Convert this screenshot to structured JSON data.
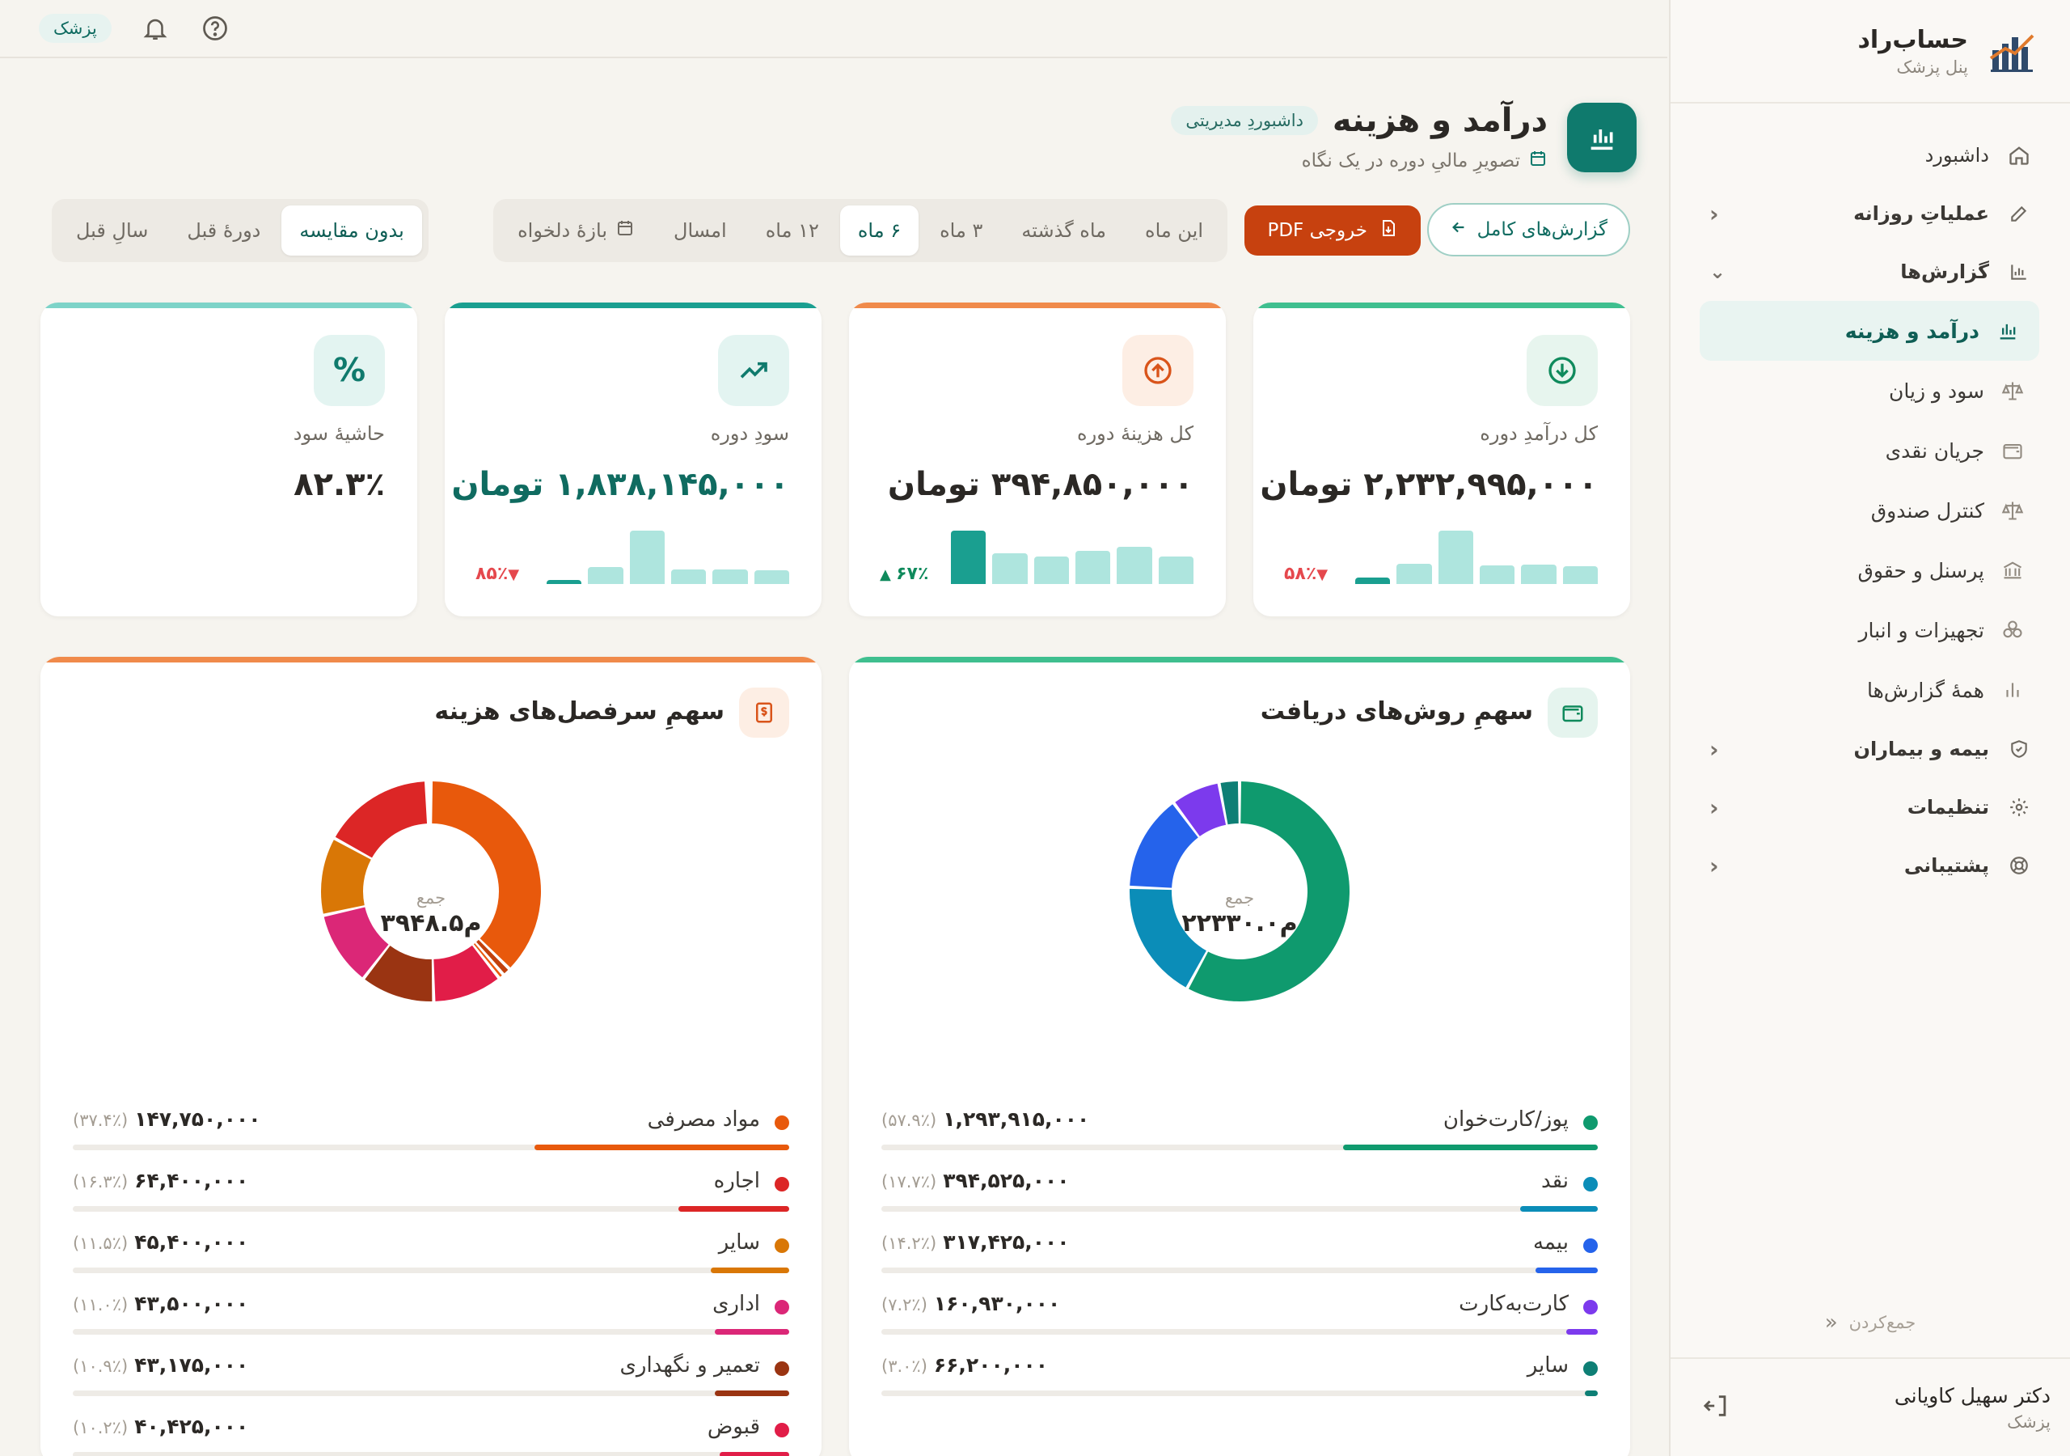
{
  "brand": {
    "name": "حساب‌راد",
    "subtitle": "پنل پزشک"
  },
  "topbar": {
    "role_pill": "پزشک"
  },
  "nav": {
    "dashboard": "داشبورد",
    "daily_ops": "عملیاتِ روزانه",
    "reports": "گزارش‌ها",
    "sub": [
      {
        "label": "درآمد و هزینه",
        "icon": "bar-chart-icon"
      },
      {
        "label": "سود و زیان",
        "icon": "scale-icon"
      },
      {
        "label": "جریان نقدی",
        "icon": "wallet-icon"
      },
      {
        "label": "کنترل صندوق",
        "icon": "scale-icon"
      },
      {
        "label": "پرسنل و حقوق",
        "icon": "bank-icon"
      },
      {
        "label": "تجهیزات و انبار",
        "icon": "boxes-icon"
      },
      {
        "label": "همهٔ گزارش‌ها",
        "icon": "bars-icon"
      }
    ],
    "insurance": "بیمه و بیماران",
    "settings": "تنظیمات",
    "support": "پشتیبانی",
    "collapse": "جمع‌کردن"
  },
  "user": {
    "name": "دکتر سهیل کاویانی",
    "role": "پزشک"
  },
  "header": {
    "title": "درآمد و هزینه",
    "badge": "داشبوردِ مدیریتی",
    "subtitle": "تصویرِ مالیِ دوره در یک نگاه"
  },
  "toolbar": {
    "full_reports": "گزارش‌های کامل",
    "pdf": "خروجی PDF",
    "periods": [
      "این ماه",
      "ماه گذشته",
      "۳ ماه",
      "۶ ماه",
      "۱۲ ماه",
      "امسال",
      "بازهٔ دلخواه"
    ],
    "selected_period": "۶ ماه",
    "compare": [
      "بدون مقایسه",
      "دورهٔ قبل",
      "سالِ قبل"
    ],
    "selected_compare": "بدون مقایسه"
  },
  "kpis": [
    {
      "label": "کل درآمدِ دوره",
      "value": "۲,۲۳۲,۹۹۵,۰۰۰ تومان",
      "trend": "۵۸٪",
      "trend_dir": "down",
      "accent": "#3fbf8f",
      "spark": [
        0.12,
        0.38,
        1.0,
        0.35,
        0.36,
        0.34
      ],
      "spark_highlight": 0
    },
    {
      "label": "کل هزینهٔ دوره",
      "value": "۳۹۴,۸۵۰,۰۰۰ تومان",
      "trend": "۶۷٪",
      "trend_dir": "up",
      "accent": "#f08a4b",
      "spark": [
        1.0,
        0.58,
        0.52,
        0.62,
        0.7,
        0.52
      ],
      "spark_highlight": 0
    },
    {
      "label": "سودِ دوره",
      "value": "۱,۸۳۸,۱۴۵,۰۰۰ تومان",
      "trend": "۸۵٪",
      "trend_dir": "down",
      "accent": "#1a9f90",
      "spark": [
        0.08,
        0.32,
        1.0,
        0.28,
        0.28,
        0.26
      ],
      "spark_highlight": 0
    },
    {
      "label": "حاشیهٔ سود",
      "value": "۸۲.۳٪",
      "accent": "#7dd3c8"
    }
  ],
  "payment_methods": {
    "title": "سهمِ روش‌های دریافت",
    "center_label": "جمع",
    "center_value": "۲۲۳۳۰.۰م",
    "items": [
      {
        "name": "پوز/کارت‌خوان",
        "value": "۱,۲۹۳,۹۱۵,۰۰۰",
        "pct": "(۵۷.۹٪)",
        "share": 0.579,
        "color": "#0f9a6e"
      },
      {
        "name": "نقد",
        "value": "۳۹۴,۵۲۵,۰۰۰",
        "pct": "(۱۷.۷٪)",
        "share": 0.177,
        "color": "#0b8db8"
      },
      {
        "name": "بیمه",
        "value": "۳۱۷,۴۲۵,۰۰۰",
        "pct": "(۱۴.۲٪)",
        "share": 0.142,
        "color": "#2563eb"
      },
      {
        "name": "کارت‌به‌کارت",
        "value": "۱۶۰,۹۳۰,۰۰۰",
        "pct": "(۷.۲٪)",
        "share": 0.072,
        "color": "#7c3aed"
      },
      {
        "name": "سایر",
        "value": "۶۶,۲۰۰,۰۰۰",
        "pct": "(۳.۰٪)",
        "share": 0.03,
        "color": "#0e7f75"
      }
    ]
  },
  "expense_categories": {
    "title": "سهمِ سرفصل‌های هزینه",
    "center_label": "جمع",
    "center_value": "۳۹۴۸.۵م",
    "items": [
      {
        "name": "مواد مصرفی",
        "value": "۱۴۷,۷۵۰,۰۰۰",
        "pct": "(۳۷.۴٪)",
        "share": 0.374,
        "color": "#e8590c"
      },
      {
        "name": "اجاره",
        "value": "۶۴,۴۰۰,۰۰۰",
        "pct": "(۱۶.۳٪)",
        "share": 0.163,
        "color": "#dc2626"
      },
      {
        "name": "سایر",
        "value": "۴۵,۴۰۰,۰۰۰",
        "pct": "(۱۱.۵٪)",
        "share": 0.115,
        "color": "#d97706"
      },
      {
        "name": "اداری",
        "value": "۴۳,۵۰۰,۰۰۰",
        "pct": "(۱۱.۰٪)",
        "share": 0.11,
        "color": "#db2777"
      },
      {
        "name": "تعمیر و نگهداری",
        "value": "۴۳,۱۷۵,۰۰۰",
        "pct": "(۱۰.۹٪)",
        "share": 0.109,
        "color": "#9a3412"
      },
      {
        "name": "قبوض",
        "value": "۴۰,۴۲۵,۰۰۰",
        "pct": "(۱۰.۲٪)",
        "share": 0.102,
        "color": "#e11d48"
      }
    ],
    "extra_slices": [
      {
        "share": 0.012,
        "color": "#c2410c"
      },
      {
        "share": 0.008,
        "color": "#ea580c"
      }
    ]
  }
}
